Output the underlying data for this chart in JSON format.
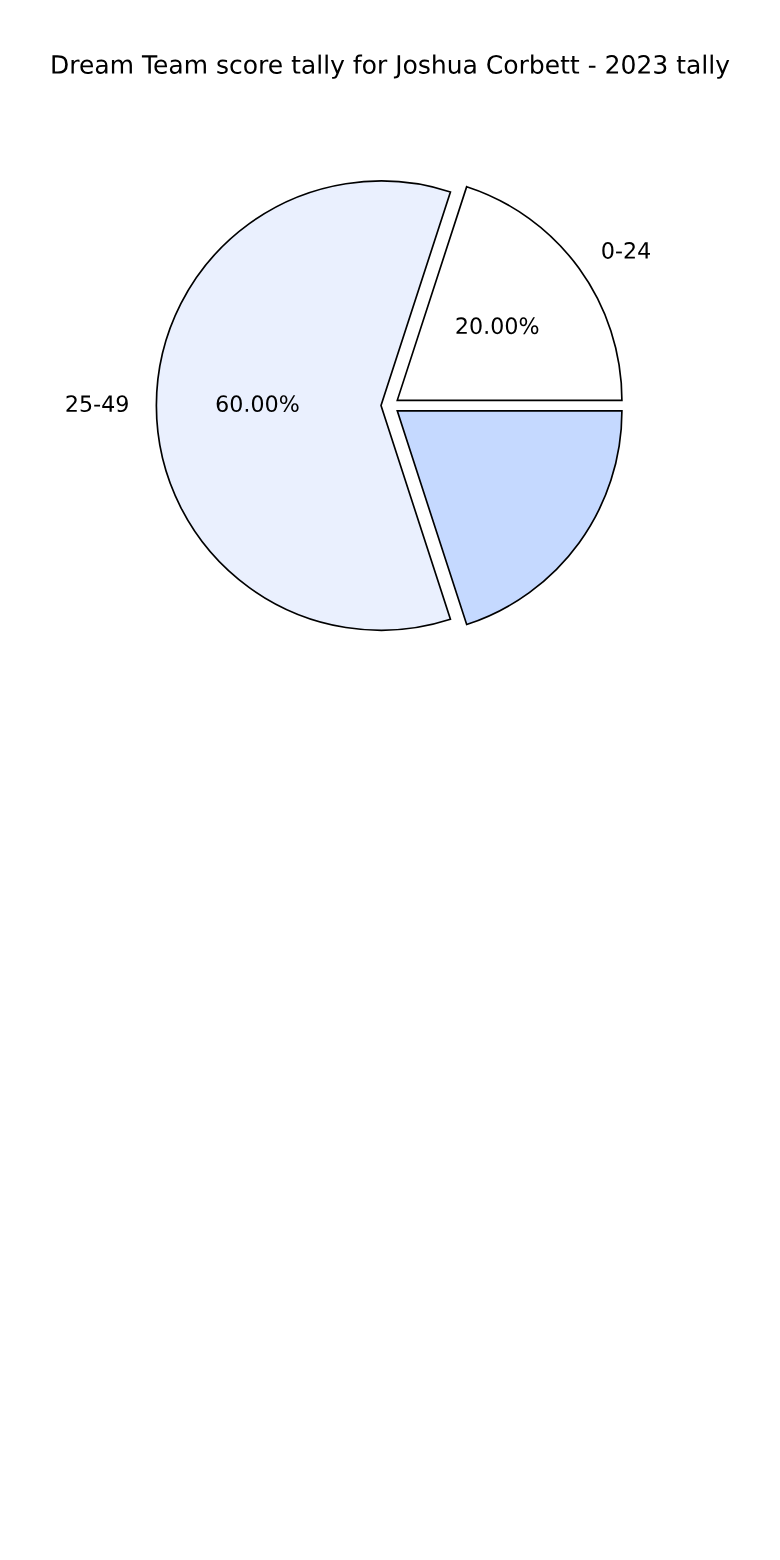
{
  "chart_data": {
    "type": "pie",
    "title": "Dream Team score tally for Joshua Corbett - 2023 tally",
    "categories": [
      "0-24",
      "25-49",
      null
    ],
    "values": [
      20,
      60,
      20
    ],
    "colors": [
      "#ffffff",
      "#eaf0fe",
      "#c5d9ff"
    ],
    "value_labels": [
      "20.00%",
      "60.00%",
      null
    ]
  }
}
